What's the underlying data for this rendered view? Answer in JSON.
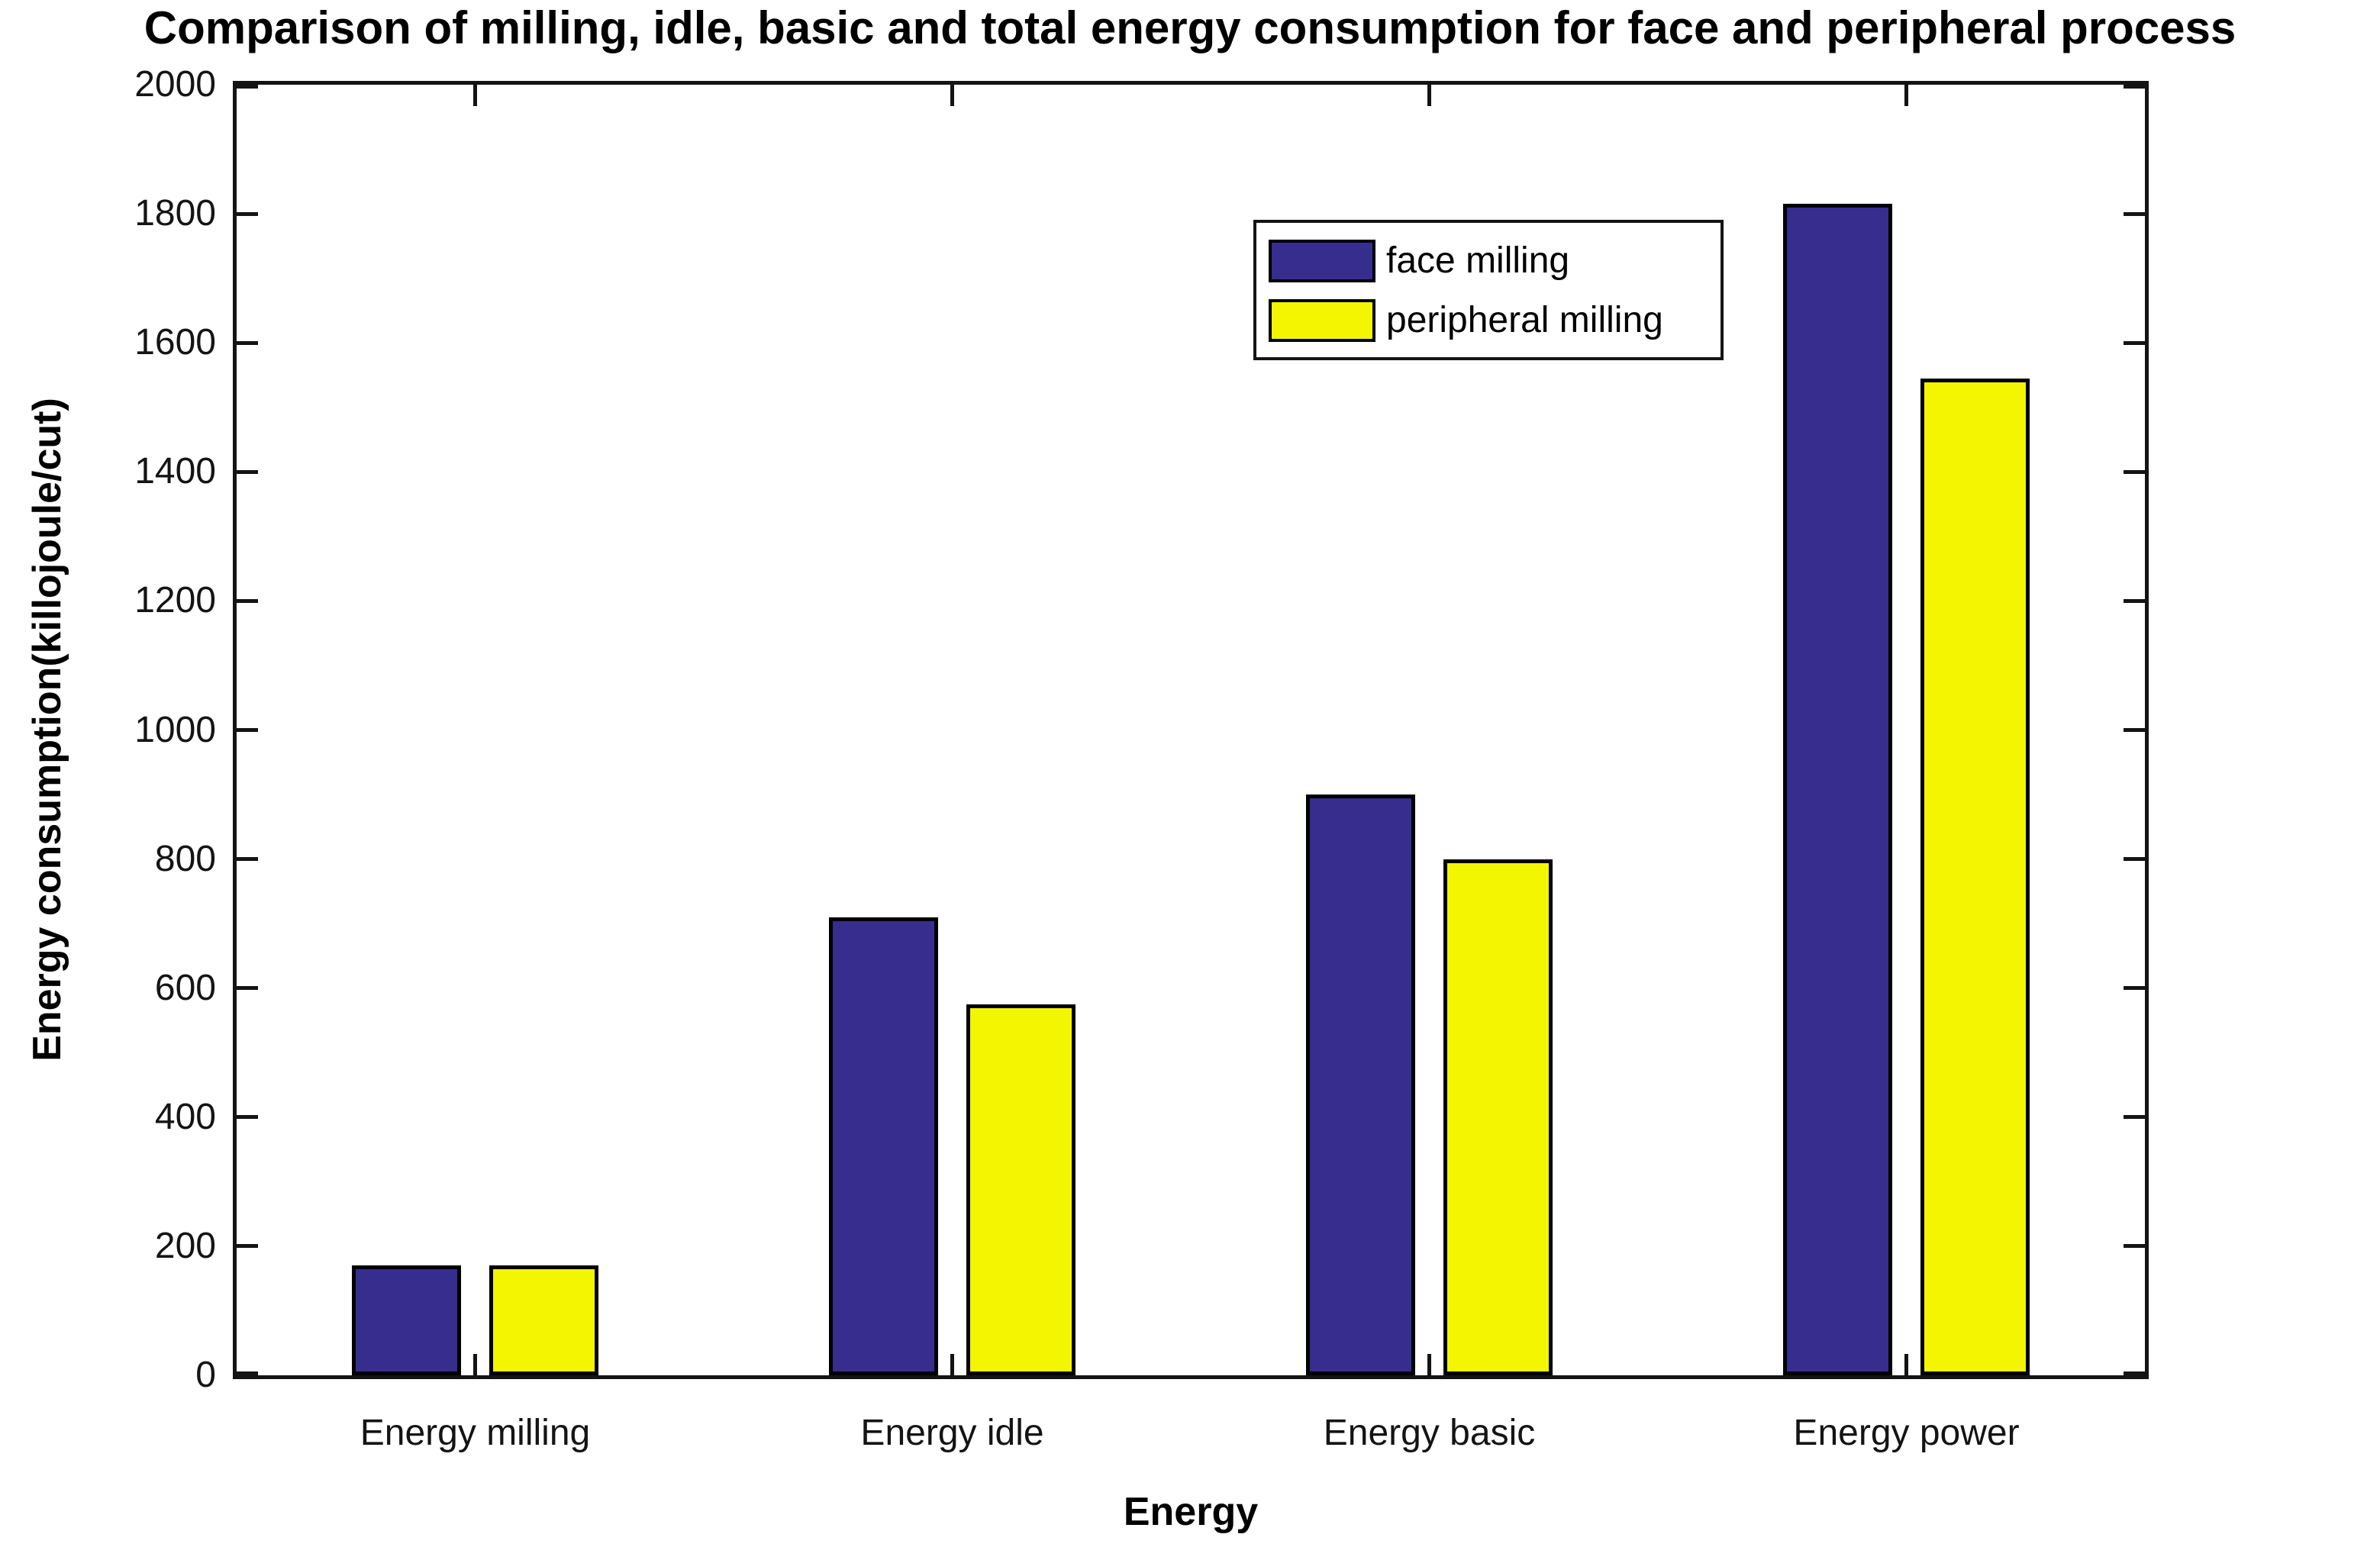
{
  "figure": {
    "background": "#ffffff",
    "axis_color": "#141414",
    "bar_edge_color": "#000000"
  },
  "chart_data": {
    "type": "bar",
    "title": "Comparison of milling, idle, basic and total energy consumption for face and peripheral process",
    "xlabel": "Energy",
    "ylabel": "Energy consumption(killojoule/cut)",
    "categories": [
      "Energy milling",
      "Energy idle",
      "Energy basic",
      "Energy power"
    ],
    "series": [
      {
        "name": "face milling",
        "color": "#372d8f",
        "values": [
          170,
          710,
          900,
          1815
        ]
      },
      {
        "name": "peripheral milling",
        "color": "#f4f500",
        "values": [
          170,
          575,
          800,
          1545
        ]
      }
    ],
    "ylim": [
      0,
      2000
    ],
    "yticks": [
      0,
      200,
      400,
      600,
      800,
      1000,
      1200,
      1400,
      1600,
      1800,
      2000
    ],
    "ytick_labels": [
      "0",
      "200",
      "400",
      "600",
      "800",
      "1000",
      "1200",
      "1400",
      "1600",
      "1800",
      "2000"
    ],
    "grid": false,
    "box": true,
    "tick_direction": "in",
    "legend_position": "upper center-right",
    "legend_labels": [
      "face milling",
      "peripheral milling"
    ]
  }
}
